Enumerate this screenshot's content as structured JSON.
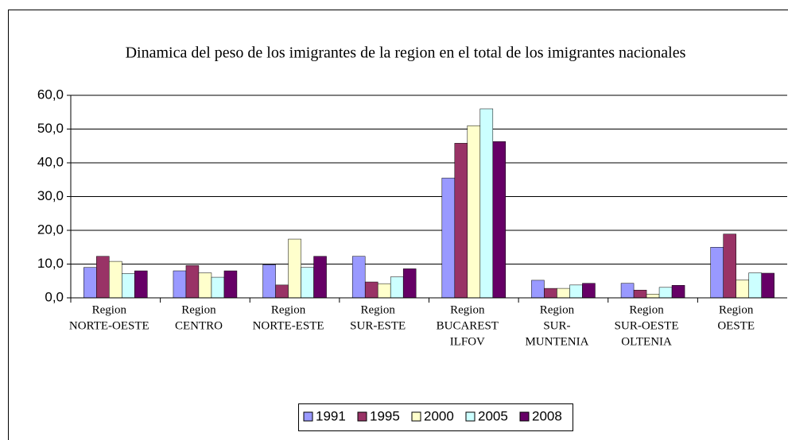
{
  "chart_data": {
    "type": "bar",
    "title": "Dinamica del peso de los imigrantes de la region en el total de los imigrantes nacionales",
    "categories": [
      [
        "Region",
        "NORTE-OESTE"
      ],
      [
        "Region",
        "CENTRO"
      ],
      [
        "Region",
        "NORTE-ESTE"
      ],
      [
        "Region",
        "SUR-ESTE"
      ],
      [
        "Region",
        "BUCAREST",
        "ILFOV"
      ],
      [
        "Region",
        "SUR-",
        "MUNTENIA"
      ],
      [
        "Region",
        "SUR-OESTE",
        "OLTENIA"
      ],
      [
        "Region",
        "OESTE"
      ]
    ],
    "series": [
      {
        "name": "1991",
        "color": "#9999ff",
        "values": [
          9.0,
          8.0,
          9.8,
          12.3,
          35.5,
          5.2,
          4.3,
          15.0
        ]
      },
      {
        "name": "1995",
        "color": "#993366",
        "values": [
          12.3,
          9.6,
          3.8,
          4.7,
          45.8,
          2.8,
          2.3,
          18.9
        ]
      },
      {
        "name": "2000",
        "color": "#ffffcc",
        "values": [
          10.8,
          7.4,
          17.4,
          4.2,
          51.0,
          2.8,
          1.1,
          5.3
        ]
      },
      {
        "name": "2005",
        "color": "#ccffff",
        "values": [
          7.2,
          6.1,
          9.0,
          6.2,
          56.0,
          3.8,
          3.1,
          7.4
        ]
      },
      {
        "name": "2008",
        "color": "#660066",
        "values": [
          8.0,
          8.0,
          12.3,
          8.6,
          46.3,
          4.3,
          3.7,
          7.3
        ]
      }
    ],
    "ylim": [
      0,
      60
    ],
    "yticks": [
      {
        "value": 0,
        "label": "0,0"
      },
      {
        "value": 10,
        "label": "10,0"
      },
      {
        "value": 20,
        "label": "20,0"
      },
      {
        "value": 30,
        "label": "30,0"
      },
      {
        "value": 40,
        "label": "40,0"
      },
      {
        "value": 50,
        "label": "50,0"
      },
      {
        "value": 60,
        "label": "60,0"
      }
    ],
    "grid": true,
    "legend": "bottom"
  }
}
